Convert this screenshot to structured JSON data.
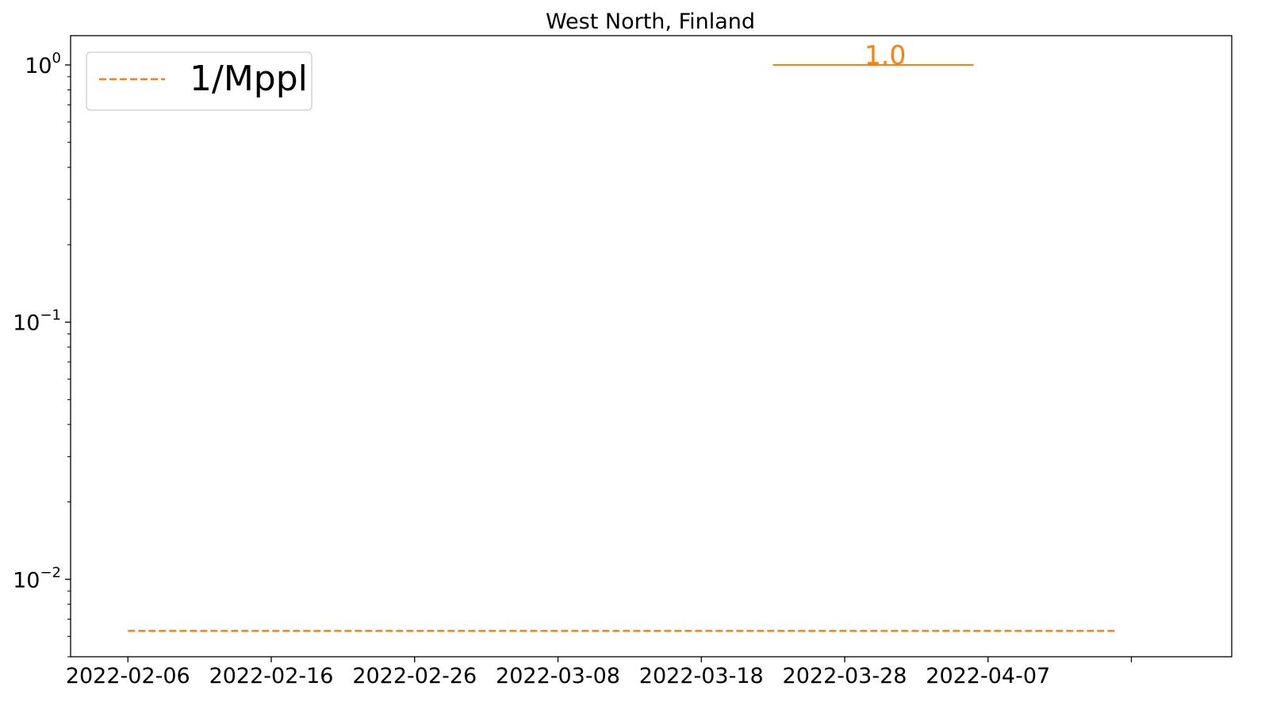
{
  "chart_data": {
    "type": "line",
    "title": "West North, Finland",
    "xlabel": "",
    "ylabel": "",
    "yscale": "log",
    "ylim": [
      0.005,
      1.3
    ],
    "xlim": [
      "2022-02-02",
      "2022-04-24"
    ],
    "x_ticks": [
      "2022-02-06",
      "2022-02-16",
      "2022-02-26",
      "2022-03-08",
      "2022-03-18",
      "2022-03-28",
      "2022-04-07",
      "2022-04-17"
    ],
    "x_tick_labels": [
      "2022-02-06",
      "2022-02-16",
      "2022-02-26",
      "2022-03-08",
      "2022-03-18",
      "2022-03-28",
      "2022-04-07",
      ""
    ],
    "y_ticks": [
      {
        "value": 1,
        "base": "10",
        "exp": "0"
      },
      {
        "value": 0.1,
        "base": "10",
        "exp": "−1"
      },
      {
        "value": 0.01,
        "base": "10",
        "exp": "−2"
      }
    ],
    "grid": false,
    "legend": {
      "position": "top-left",
      "entries": [
        {
          "label": "1/Mppl",
          "color": "#ff7f0e",
          "style": "dashed"
        }
      ]
    },
    "series": [
      {
        "name": "1/Mppl",
        "color": "#ff7f0e",
        "style": "dashed",
        "x": [
          "2022-02-06",
          "2022-04-16"
        ],
        "y": [
          0.0063,
          0.0063
        ]
      }
    ],
    "annotations": [
      {
        "type": "segment",
        "color": "#ff7f0e",
        "x_start": "2022-03-23",
        "x_end": "2022-04-06",
        "y": 1.0,
        "label": "1.0"
      }
    ]
  }
}
